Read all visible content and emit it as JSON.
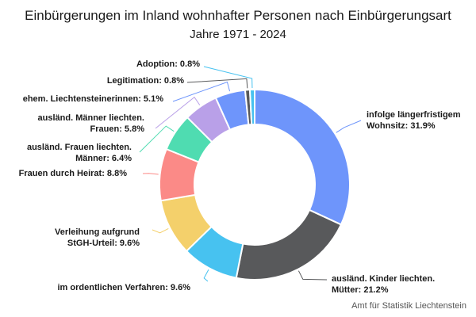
{
  "chart_data": {
    "type": "pie",
    "donut": true,
    "title": "Einbürgerungen im Inland wohnhafter Personen nach Einbürgerungsart",
    "subtitle": "Jahre 1971 - 2024",
    "slices": [
      {
        "label": "infolge längerfristigem Wohnsitz",
        "display": [
          "infolge längerfristigem",
          "Wohnsitz: 31.9%"
        ],
        "value": 31.9,
        "color": "#6e95fb"
      },
      {
        "label": "ausländ. Kinder liechten. Mütter",
        "display": [
          "ausländ. Kinder liechten.",
          "Mütter: 21.2%"
        ],
        "value": 21.2,
        "color": "#58595b"
      },
      {
        "label": "im ordentlichen Verfahren",
        "display": [
          "im ordentlichen Verfahren: 9.6%"
        ],
        "value": 9.6,
        "color": "#47c2f0"
      },
      {
        "label": "Verleihung aufgrund StGH-Urteil",
        "display": [
          "Verleihung aufgrund",
          "StGH-Urteil: 9.6%"
        ],
        "value": 9.6,
        "color": "#f4d06b"
      },
      {
        "label": "Frauen durch Heirat",
        "display": [
          "Frauen durch Heirat: 8.8%"
        ],
        "value": 8.8,
        "color": "#fb8a87"
      },
      {
        "label": "ausländ. Frauen liechten. Männer",
        "display": [
          "ausländ. Frauen liechten.",
          "Männer: 6.4%"
        ],
        "value": 6.4,
        "color": "#4fdcb1"
      },
      {
        "label": "ausländ. Männer liechten. Frauen",
        "display": [
          "ausländ. Männer liechten.",
          "Frauen: 5.8%"
        ],
        "value": 5.8,
        "color": "#b9a0e8"
      },
      {
        "label": "ehem. Liechtensteinerinnen",
        "display": [
          "ehem. Liechtensteinerinnen: 5.1%"
        ],
        "value": 5.1,
        "color": "#6e95fb"
      },
      {
        "label": "Legitimation",
        "display": [
          "Legitimation: 0.8%"
        ],
        "value": 0.8,
        "color": "#58595b"
      },
      {
        "label": "Adoption",
        "display": [
          "Adoption: 0.8%"
        ],
        "value": 0.8,
        "color": "#47c2f0"
      }
    ]
  },
  "source": "Amt für Statistik Liechtenstein"
}
